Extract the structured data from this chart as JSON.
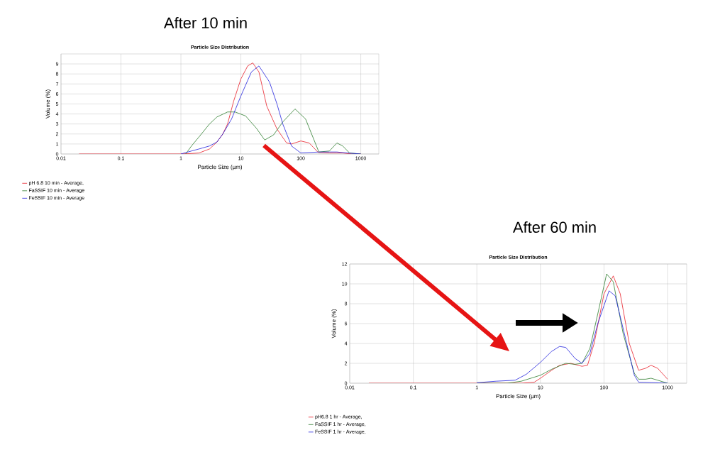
{
  "chart_data": [
    {
      "type": "line",
      "title": "After 10 min",
      "subtitle": "Particle Size Distribution",
      "xlabel": "Particle Size (µm)",
      "ylabel": "Volume (%)",
      "log": "x",
      "grid": true,
      "legend": "bottom left",
      "xlim": [
        0.01,
        2000
      ],
      "ylim": [
        0,
        10
      ],
      "xticks": [
        0.01,
        0.1,
        1,
        10,
        100,
        1000
      ],
      "yticks": [
        0,
        1,
        2,
        3,
        4,
        5,
        6,
        7,
        8,
        9
      ],
      "series": [
        {
          "name": "pH 6.8 10 min - Average,",
          "color": "#e8202a",
          "x": [
            0.02,
            0.5,
            1,
            1.5,
            2,
            3,
            4,
            5,
            6,
            7.6,
            10,
            13,
            15.8,
            20,
            27,
            40,
            58,
            70,
            100,
            138,
            195,
            300,
            500,
            700,
            1000
          ],
          "values": [
            0,
            0,
            0,
            0.05,
            0.1,
            0.5,
            1.2,
            2,
            3,
            5.3,
            7.5,
            8.8,
            9.1,
            8.2,
            4.8,
            2.5,
            1.1,
            1.0,
            1.3,
            1.1,
            0.15,
            0.1,
            0.1,
            0,
            0
          ]
        },
        {
          "name": "FaSSIF 10 min - Average",
          "color": "#2e7d2e",
          "x": [
            1.2,
            1.5,
            2,
            3,
            4,
            6,
            8,
            12,
            18,
            25,
            35,
            50,
            80,
            120,
            200,
            300,
            400,
            500,
            650,
            1000
          ],
          "values": [
            0,
            0.8,
            1.7,
            3,
            3.7,
            4.2,
            4.2,
            3.8,
            2.6,
            1.4,
            1.9,
            3.2,
            4.5,
            3.5,
            0.2,
            0.3,
            1.1,
            0.8,
            0.1,
            0
          ]
        },
        {
          "name": "FeSSIF 10 min - Average",
          "color": "#2222dd",
          "x": [
            1,
            1.5,
            2,
            3,
            4,
            5,
            7,
            10,
            15,
            20,
            30,
            40,
            50,
            70,
            100,
            200,
            400,
            600,
            1000
          ],
          "values": [
            0,
            0.3,
            0.5,
            0.8,
            1.2,
            2,
            3.5,
            5.8,
            8.2,
            8.8,
            7.2,
            5,
            3,
            0.8,
            0.1,
            0.2,
            0.2,
            0.1,
            0
          ]
        }
      ]
    },
    {
      "type": "line",
      "title": "After 60 min",
      "subtitle": "Particle Size Distribution",
      "xlabel": "Particle Size (µm)",
      "ylabel": "Volume (%)",
      "log": "x",
      "grid": true,
      "legend": "bottom left",
      "xlim": [
        0.01,
        2000
      ],
      "ylim": [
        0,
        12
      ],
      "xticks": [
        0.01,
        0.1,
        1,
        10,
        100,
        1000
      ],
      "yticks": [
        0,
        2,
        4,
        6,
        8,
        10,
        12
      ],
      "series": [
        {
          "name": "pH6.8 1 hr - Average,",
          "color": "#e8202a",
          "x": [
            0.02,
            1,
            5,
            8,
            10,
            15,
            20,
            30,
            45,
            55,
            70,
            100,
            140,
            180,
            250,
            350,
            450,
            550,
            700,
            1000
          ],
          "values": [
            0,
            0,
            0,
            0.1,
            0.5,
            1.3,
            1.8,
            2,
            1.7,
            1.8,
            4,
            9,
            10.8,
            9,
            4,
            1.3,
            1.5,
            1.8,
            1.5,
            0.4
          ]
        },
        {
          "name": "FaSSIF 1 hr - Average,",
          "color": "#2e7d2e",
          "x": [
            1,
            3,
            5,
            10,
            15,
            25,
            35,
            45,
            60,
            80,
            110,
            140,
            200,
            300,
            350,
            450,
            550,
            700,
            1000
          ],
          "values": [
            0,
            0,
            0.2,
            0.8,
            1.4,
            2,
            1.9,
            2,
            3.5,
            7,
            11,
            10.2,
            5,
            1,
            0.4,
            0.4,
            0.5,
            0.3,
            0
          ]
        },
        {
          "name": "FeSSIF 1 hr - Average,",
          "color": "#2222dd",
          "x": [
            1,
            2,
            4,
            6,
            10,
            15,
            20,
            25,
            35,
            45,
            60,
            80,
            120,
            150,
            200,
            300,
            350,
            1000
          ],
          "values": [
            0.05,
            0.2,
            0.3,
            0.9,
            2.1,
            3.2,
            3.7,
            3.6,
            2.5,
            2,
            3,
            6,
            9.3,
            8.8,
            5.5,
            0.8,
            0.1,
            0
          ]
        }
      ]
    }
  ]
}
